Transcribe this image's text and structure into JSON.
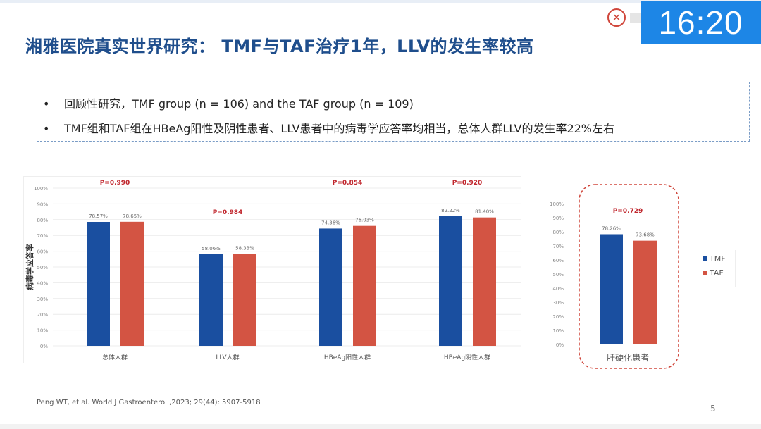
{
  "header": {
    "title": "湘雅医院真实世界研究： TMF与TAF治疗1年，LLV的发生率较高",
    "clock": "16:20",
    "logo_icon": "hospital-seal-icon"
  },
  "bullets": [
    "回顾性研究，TMF group (n = 106) and the TAF group (n = 109)",
    "TMF组和TAF组在HBeAg阳性及阴性患者、LLV患者中的病毒学应答率均相当，总体人群LLV的发生率22%左右"
  ],
  "bullet_symbol": "•",
  "chart_data": [
    {
      "type": "bar",
      "ylabel": "病毒学应答率",
      "ylim": [
        0,
        100
      ],
      "yticks": [
        "0%",
        "10%",
        "20%",
        "30%",
        "40%",
        "50%",
        "60%",
        "70%",
        "80%",
        "90%",
        "100%"
      ],
      "grid": true,
      "categories": [
        "总体人群",
        "LLV人群",
        "HBeAg阳性人群",
        "HBeAg阴性人群"
      ],
      "series": [
        {
          "name": "TMF",
          "color": "#1a4fa0",
          "values": [
            78.57,
            58.06,
            74.36,
            82.22
          ],
          "labels": [
            "78.57%",
            "58.06%",
            "74.36%",
            "82.22%"
          ]
        },
        {
          "name": "TAF",
          "color": "#d35443",
          "values": [
            78.65,
            58.33,
            76.03,
            81.4
          ],
          "labels": [
            "78.65%",
            "58.33%",
            "76.03%",
            "81.40%"
          ]
        }
      ],
      "p_values": [
        "P=0.990",
        "P=0.984",
        "P=0.854",
        "P=0.920"
      ]
    },
    {
      "type": "bar",
      "ylim": [
        0,
        100
      ],
      "yticks": [
        "0%",
        "10%",
        "20%",
        "30%",
        "40%",
        "50%",
        "60%",
        "70%",
        "80%",
        "90%",
        "100%"
      ],
      "grid": false,
      "categories": [
        "肝硬化患者"
      ],
      "series": [
        {
          "name": "TMF",
          "color": "#1a4fa0",
          "values": [
            78.26
          ],
          "labels": [
            "78.26%"
          ]
        },
        {
          "name": "TAF",
          "color": "#d35443",
          "values": [
            73.68
          ],
          "labels": [
            "73.68%"
          ]
        }
      ],
      "p_values": [
        "P=0.729"
      ],
      "legend": "right"
    }
  ],
  "p_color": "#c0262d",
  "footer": {
    "citation": "Peng WT, et al. World J Gastroenterol ,2023; 29(44): 5907-5918",
    "page": "5"
  }
}
